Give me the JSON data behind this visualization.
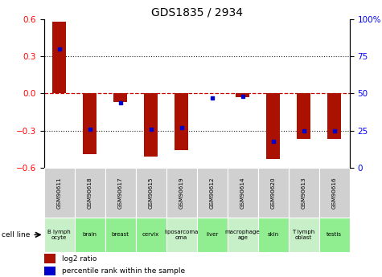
{
  "title": "GDS1835 / 2934",
  "samples": [
    "GSM90611",
    "GSM90618",
    "GSM90617",
    "GSM90615",
    "GSM90619",
    "GSM90612",
    "GSM90614",
    "GSM90620",
    "GSM90613",
    "GSM90616"
  ],
  "cell_lines": [
    "B lymph\nocyte",
    "brain",
    "breast",
    "cervix",
    "liposarcoma\n",
    "liver",
    "macrophage\n",
    "skin",
    "T lymph\noblast",
    "testis"
  ],
  "cell_line_labels": [
    "B lymph\nocyte",
    "brain",
    "breast",
    "cervix",
    "liposarcoma\n",
    "liver",
    "macrophage\n",
    "skin",
    "T lymph\noblast",
    "testis"
  ],
  "cell_line_display": [
    "B lymph\nocyte",
    "brain",
    "breast",
    "cervix",
    "liposarcoma\n",
    "liver",
    "macrophage\n",
    "skin",
    "T lymph\noblast",
    "testis"
  ],
  "cell_line_text": [
    "B lymph\nocyte",
    "brain",
    "breast",
    "cervix",
    "liposarcoma\n",
    "liver",
    "macrophage\n",
    "skin",
    "T lymph\noblast",
    "testis"
  ],
  "cell_line_colors": [
    "#c8f0c8",
    "#90ee90",
    "#90ee90",
    "#90ee90",
    "#c8f0c8",
    "#90ee90",
    "#c8f0c8",
    "#90ee90",
    "#c8f0c8",
    "#90ee90"
  ],
  "log2_ratio": [
    0.58,
    -0.49,
    -0.07,
    -0.51,
    -0.46,
    0.0,
    -0.03,
    -0.53,
    -0.37,
    -0.37
  ],
  "percentile_rank": [
    80,
    26,
    44,
    26,
    27,
    47,
    48,
    18,
    25,
    25
  ],
  "ylim_left": [
    -0.6,
    0.6
  ],
  "ylim_right": [
    0,
    100
  ],
  "yticks_left": [
    -0.6,
    -0.3,
    0.0,
    0.3,
    0.6
  ],
  "yticks_right": [
    0,
    25,
    50,
    75,
    100
  ],
  "bar_color": "#aa1100",
  "dot_color": "#0000cc",
  "hline_color": "#cc0000",
  "gridline_color": "#222222",
  "bg_color": "#ffffff",
  "legend_red": "log2 ratio",
  "legend_blue": "percentile rank within the sample",
  "bar_width": 0.45
}
